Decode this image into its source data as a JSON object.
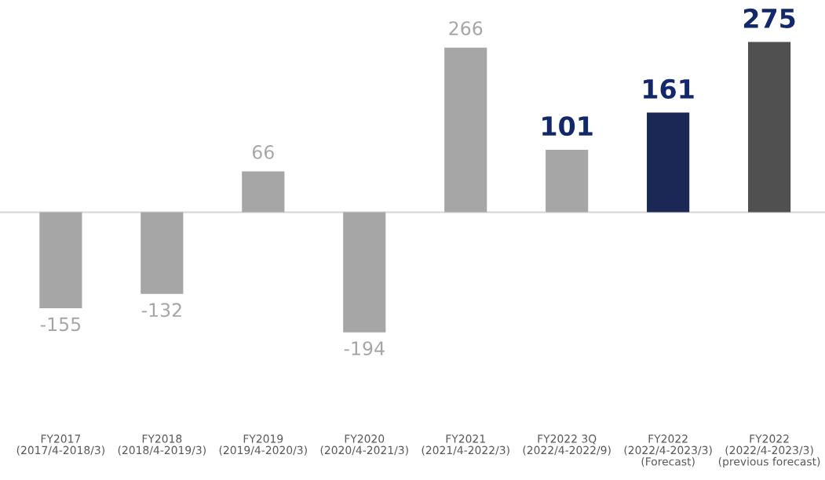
{
  "chart_data": {
    "type": "bar",
    "categories": [
      "FY2017\n(2017/4-2018/3)",
      "FY2018\n(2018/4-2019/3)",
      "FY2019\n(2019/4-2020/3)",
      "FY2020\n(2020/4-2021/3)",
      "FY2021\n(2021/4-2022/3)",
      "FY2022 3Q\n(2022/4-2022/9)",
      "FY2022\n(2022/4-2023/3)\n(Forecast)",
      "FY2022\n(2022/4-2023/3)\n(previous forecast)"
    ],
    "values": [
      -155,
      -132,
      66,
      -194,
      266,
      101,
      161,
      275
    ],
    "colors": [
      "#a6a6a6",
      "#a6a6a6",
      "#a6a6a6",
      "#a6a6a6",
      "#a6a6a6",
      "#a6a6a6",
      "#1b2755",
      "#505050"
    ],
    "data_labels": true,
    "grid": false,
    "legend": false
  }
}
